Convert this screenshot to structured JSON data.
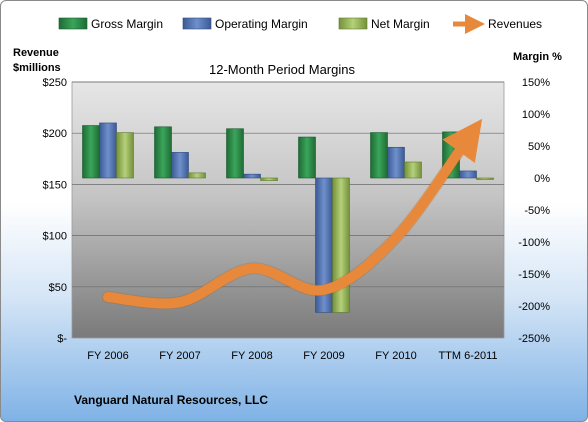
{
  "chart_data": {
    "type": "bar",
    "title": "12-Month Period Margins",
    "categories": [
      "FY 2006",
      "FY 2007",
      "FY 2008",
      "FY 2009",
      "FY 2010",
      "TTM 6-2011"
    ],
    "series": [
      {
        "name": "Gross Margin",
        "axis": "right",
        "values": [
          82,
          80,
          77,
          64,
          71,
          72
        ]
      },
      {
        "name": "Operating Margin",
        "axis": "right",
        "values": [
          86,
          40,
          6,
          -210,
          48,
          11
        ]
      },
      {
        "name": "Net Margin",
        "axis": "right",
        "values": [
          71,
          8,
          -4,
          -210,
          25,
          -1
        ]
      },
      {
        "name": "Revenues",
        "type": "line",
        "axis": "left",
        "values": [
          40,
          35,
          68,
          47,
          98,
          195
        ]
      }
    ],
    "left_axis": {
      "title_line1": "Revenue",
      "title_line2": "$millions",
      "min": 0,
      "max": 250,
      "ticks": [
        "$-",
        "$50",
        "$100",
        "$150",
        "$200",
        "$250"
      ]
    },
    "right_axis": {
      "title": "Margin %",
      "min": -250,
      "max": 150,
      "ticks": [
        "-250%",
        "-200%",
        "-150%",
        "-100%",
        "-50%",
        "0%",
        "50%",
        "100%",
        "150%"
      ]
    },
    "grid": true,
    "legend_position": "top",
    "colors": {
      "gross": "#2e8b4a",
      "operating": "#5678b8",
      "net": "#9bbb59",
      "revenues": "#e8883a"
    }
  },
  "footer": {
    "company": "Vanguard Natural Resources, LLC"
  }
}
